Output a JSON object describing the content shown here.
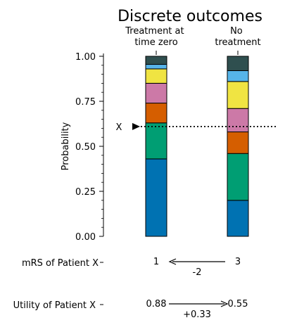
{
  "chart_data": {
    "type": "bar",
    "title": "Discrete outcomes",
    "ylabel": "Probability",
    "ylim": [
      0,
      1
    ],
    "yticks": [
      "0.00",
      "0.25",
      "0.50",
      "0.75",
      "1.00"
    ],
    "categories": [
      "Treatment at time zero",
      "No treatment"
    ],
    "category_label_lines": [
      [
        "Treatment at",
        "time zero"
      ],
      [
        "No",
        "treatment"
      ]
    ],
    "segment_colors": [
      "#0072B2",
      "#009E73",
      "#D55E00",
      "#CC79A7",
      "#F0E442",
      "#56B4E9",
      "#2F4F4F"
    ],
    "stacked_boundaries": [
      [
        0.43,
        0.63,
        0.74,
        0.85,
        0.93,
        0.955,
        1.0
      ],
      [
        0.2,
        0.46,
        0.58,
        0.71,
        0.86,
        0.92,
        1.0
      ]
    ],
    "x_marker": {
      "label": "X",
      "value": 0.61
    },
    "grid": false,
    "legend": "none"
  },
  "rows": [
    {
      "label": "mRS of Patient X",
      "left": "1",
      "right": "3",
      "delta": "-2"
    },
    {
      "label": "Utility of Patient X",
      "left": "0.88",
      "right": "0.55",
      "delta": "+0.33"
    }
  ]
}
